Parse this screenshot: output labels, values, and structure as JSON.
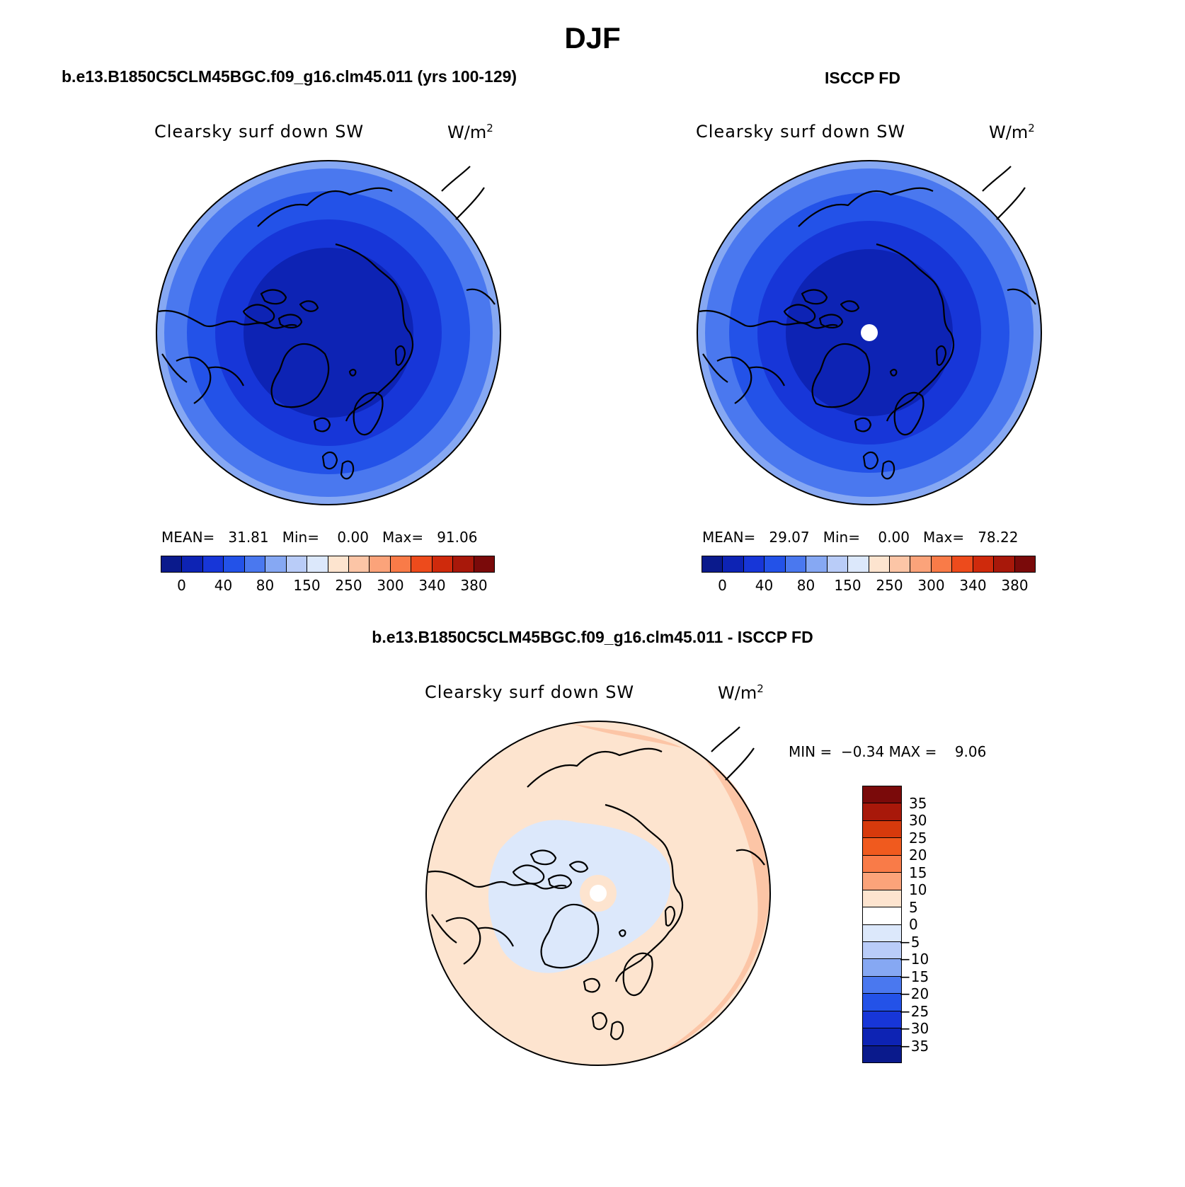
{
  "title": "DJF",
  "panel1": {
    "case": "b.e13.B1850C5CLM45BGC.f09_g16.clm45.011 (yrs 100-129)",
    "variable": "Clearsky surf down SW",
    "units_base": "W/m",
    "units_exp": "2",
    "stats": {
      "mean_label": "MEAN=",
      "mean": "31.81",
      "min_label": "Min=",
      "min": "0.00",
      "max_label": "Max=",
      "max": "91.06"
    }
  },
  "panel2": {
    "case": "ISCCP FD",
    "variable": "Clearsky surf down SW",
    "units_base": "W/m",
    "units_exp": "2",
    "stats": {
      "mean_label": "MEAN=",
      "mean": "29.07",
      "min_label": "Min=",
      "min": "0.00",
      "max_label": "Max=",
      "max": "78.22"
    }
  },
  "panel3": {
    "case": "b.e13.B1850C5CLM45BGC.f09_g16.clm45.011 - ISCCP FD",
    "variable": "Clearsky surf down SW",
    "units_base": "W/m",
    "units_exp": "2",
    "stats": {
      "min_label": "MIN =",
      "min": "−0.34",
      "max_label": "MAX =",
      "max": "9.06"
    }
  },
  "colorbar_abs": {
    "colors": [
      "#0a1a8c",
      "#0d23b4",
      "#1736d8",
      "#2352e8",
      "#4a78ef",
      "#86a8f3",
      "#b9ccf8",
      "#dce8fb",
      "#fde4cf",
      "#fcc5a6",
      "#fba37a",
      "#f97b48",
      "#ed4b1c",
      "#cf2a0c",
      "#a8180a",
      "#7a0a0a"
    ],
    "tick_labels": [
      "0",
      "40",
      "80",
      "150",
      "250",
      "300",
      "340",
      "380"
    ]
  },
  "colorbar_diff": {
    "colors": [
      "#7a0a0a",
      "#a8180a",
      "#d73a0c",
      "#f05a1e",
      "#f97b48",
      "#fba37a",
      "#fde4cf",
      "#ffffff",
      "#dce8fb",
      "#b9ccf8",
      "#86a8f3",
      "#4a78ef",
      "#2352e8",
      "#1736d8",
      "#0d23b4",
      "#0a1a8c"
    ],
    "tick_labels": [
      "35",
      "30",
      "25",
      "20",
      "15",
      "10",
      "5",
      "0",
      "−5",
      "−10",
      "−15",
      "−20",
      "−25",
      "−30",
      "−35"
    ]
  },
  "map_colors": {
    "ring_outer": "#86a8f3",
    "ring_2": "#4a78ef",
    "ring_3": "#2352e8",
    "ring_4": "#1736d8",
    "core": "#0d23b4",
    "diff_pos": "#fde4cf",
    "diff_pos2": "#fcc5a6",
    "diff_neg": "#dce8fb",
    "coast": "#000000"
  }
}
